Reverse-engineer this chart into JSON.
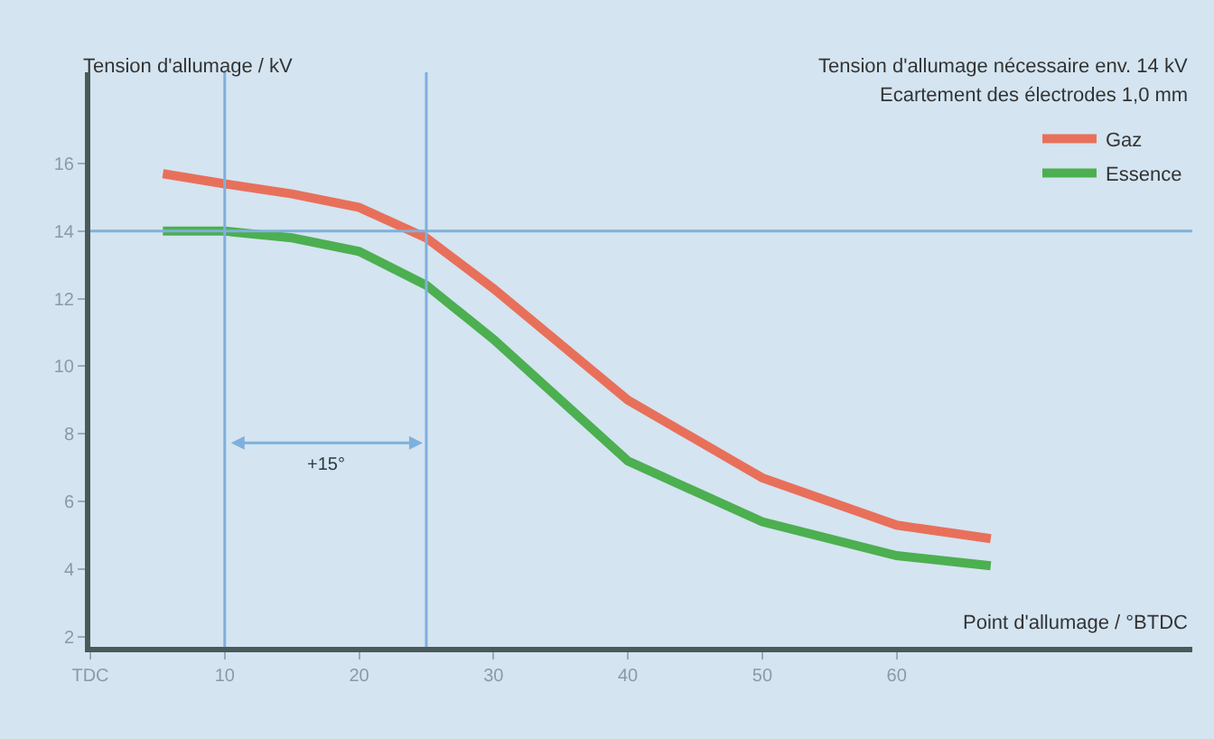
{
  "chart_data": {
    "type": "line",
    "xlabel": "Point d'allumage / °BTDC",
    "ylabel": "Tension d'allumage / kV",
    "x": [
      5.4,
      10,
      15,
      20,
      25,
      30,
      40,
      50,
      60,
      67
    ],
    "series": [
      {
        "name": "Gaz",
        "color": "#e8705a",
        "values": [
          15.7,
          15.4,
          15.1,
          14.7,
          13.8,
          12.3,
          9.0,
          6.7,
          5.3,
          4.9
        ]
      },
      {
        "name": "Essence",
        "color": "#4caf50",
        "values": [
          14.0,
          14.0,
          13.8,
          13.4,
          12.4,
          10.8,
          7.2,
          5.4,
          4.4,
          4.1
        ]
      }
    ],
    "xlim": [
      0,
      82
    ],
    "ylim": [
      1.7,
      18.7
    ],
    "xticks": [
      {
        "value": 0,
        "label": "TDC"
      },
      10,
      20,
      30,
      40,
      50,
      60
    ],
    "yticks": [
      2,
      4,
      6,
      8,
      10,
      12,
      14,
      16
    ],
    "ref_lines": [
      {
        "axis": "x",
        "value": 10,
        "color": "#7fb0dc"
      },
      {
        "axis": "x",
        "value": 25,
        "color": "#7fb0dc"
      },
      {
        "axis": "y",
        "value": 14,
        "color": "#7fb0dc"
      }
    ],
    "annotations": [
      "+15°",
      "Tension d'allumage nécessaire env. 14 kV",
      "Ecartement des électrodes 1,0 mm"
    ],
    "legend": "top right",
    "grid": false,
    "marker": "none",
    "line_style": "solid"
  }
}
